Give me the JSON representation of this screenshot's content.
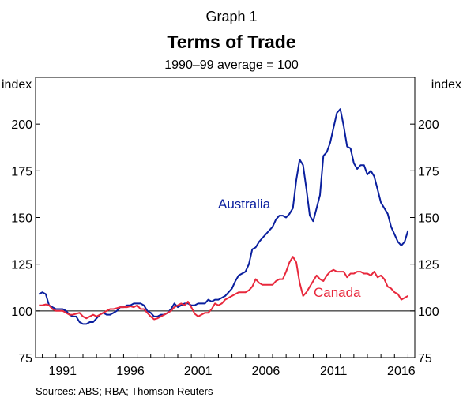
{
  "header": {
    "graph_number": "Graph 1",
    "title": "Terms of Trade",
    "subtitle": "1990–99 average = 100"
  },
  "sources": "Sources:   ABS; RBA; Thomson Reuters",
  "chart_data": {
    "type": "line",
    "ylabel_left": "index",
    "ylabel_right": "index",
    "ylim": [
      75,
      225
    ],
    "y_ticks": [
      75,
      100,
      125,
      150,
      175,
      200
    ],
    "xlim": [
      1989.5,
      2017.5
    ],
    "x_ticks": [
      1991,
      1996,
      2001,
      2006,
      2011,
      2016
    ],
    "x_tick_labels": [
      "1991",
      "1996",
      "2001",
      "2006",
      "2011",
      "2016"
    ],
    "reference_line": 100,
    "grid": false,
    "legend": "inline labels",
    "series": [
      {
        "name": "Australia",
        "color": "#0a1f9e",
        "points": [
          [
            1989.75,
            109
          ],
          [
            1990.0,
            110
          ],
          [
            1990.25,
            109
          ],
          [
            1990.5,
            103
          ],
          [
            1990.75,
            102
          ],
          [
            1991.0,
            101
          ],
          [
            1991.25,
            101
          ],
          [
            1991.5,
            101
          ],
          [
            1991.75,
            100
          ],
          [
            1992.0,
            98
          ],
          [
            1992.25,
            97
          ],
          [
            1992.5,
            97
          ],
          [
            1992.75,
            94
          ],
          [
            1993.0,
            93
          ],
          [
            1993.25,
            93
          ],
          [
            1993.5,
            94
          ],
          [
            1993.75,
            94
          ],
          [
            1994.0,
            96
          ],
          [
            1994.25,
            98
          ],
          [
            1994.5,
            99
          ],
          [
            1994.75,
            98
          ],
          [
            1995.0,
            98
          ],
          [
            1995.25,
            99
          ],
          [
            1995.5,
            100
          ],
          [
            1995.75,
            102
          ],
          [
            1996.0,
            102
          ],
          [
            1996.25,
            103
          ],
          [
            1996.5,
            103
          ],
          [
            1996.75,
            104
          ],
          [
            1997.0,
            104
          ],
          [
            1997.25,
            104
          ],
          [
            1997.5,
            103
          ],
          [
            1997.75,
            100
          ],
          [
            1998.0,
            99
          ],
          [
            1998.25,
            97
          ],
          [
            1998.5,
            97
          ],
          [
            1998.75,
            98
          ],
          [
            1999.0,
            98
          ],
          [
            1999.25,
            99
          ],
          [
            1999.5,
            101
          ],
          [
            1999.75,
            104
          ],
          [
            2000.0,
            102
          ],
          [
            2000.25,
            103
          ],
          [
            2000.5,
            104
          ],
          [
            2000.75,
            104
          ],
          [
            2001.0,
            103
          ],
          [
            2001.25,
            103
          ],
          [
            2001.5,
            104
          ],
          [
            2001.75,
            104
          ],
          [
            2002.0,
            104
          ],
          [
            2002.25,
            106
          ],
          [
            2002.5,
            105
          ],
          [
            2002.75,
            106
          ],
          [
            2003.0,
            106
          ],
          [
            2003.25,
            107
          ],
          [
            2003.5,
            108
          ],
          [
            2003.75,
            110
          ],
          [
            2004.0,
            112
          ],
          [
            2004.25,
            116
          ],
          [
            2004.5,
            119
          ],
          [
            2004.75,
            120
          ],
          [
            2005.0,
            121
          ],
          [
            2005.25,
            125
          ],
          [
            2005.5,
            133
          ],
          [
            2005.75,
            134
          ],
          [
            2006.0,
            137
          ],
          [
            2006.25,
            139
          ],
          [
            2006.5,
            141
          ],
          [
            2006.75,
            143
          ],
          [
            2007.0,
            145
          ],
          [
            2007.25,
            149
          ],
          [
            2007.5,
            151
          ],
          [
            2007.75,
            151
          ],
          [
            2008.0,
            150
          ],
          [
            2008.25,
            152
          ],
          [
            2008.5,
            155
          ],
          [
            2008.75,
            170
          ],
          [
            2009.0,
            181
          ],
          [
            2009.25,
            178
          ],
          [
            2009.5,
            165
          ],
          [
            2009.75,
            151
          ],
          [
            2010.0,
            148
          ],
          [
            2010.25,
            155
          ],
          [
            2010.5,
            162
          ],
          [
            2010.75,
            183
          ],
          [
            2011.0,
            185
          ],
          [
            2011.25,
            190
          ],
          [
            2011.5,
            198
          ],
          [
            2011.75,
            206
          ],
          [
            2012.0,
            208
          ],
          [
            2012.25,
            199
          ],
          [
            2012.5,
            188
          ],
          [
            2012.75,
            187
          ],
          [
            2013.0,
            179
          ],
          [
            2013.25,
            176
          ],
          [
            2013.5,
            178
          ],
          [
            2013.75,
            178
          ],
          [
            2014.0,
            173
          ],
          [
            2014.25,
            175
          ],
          [
            2014.5,
            172
          ],
          [
            2014.75,
            165
          ],
          [
            2015.0,
            158
          ],
          [
            2015.25,
            155
          ],
          [
            2015.5,
            152
          ],
          [
            2015.75,
            145
          ],
          [
            2016.0,
            141
          ],
          [
            2016.25,
            137
          ],
          [
            2016.5,
            135
          ],
          [
            2016.75,
            137
          ],
          [
            2017.0,
            143
          ]
        ]
      },
      {
        "name": "Canada",
        "color": "#e8283c",
        "points": [
          [
            1989.75,
            103
          ],
          [
            1990.0,
            103
          ],
          [
            1990.25,
            103.5
          ],
          [
            1990.5,
            103
          ],
          [
            1990.75,
            101
          ],
          [
            1991.0,
            100
          ],
          [
            1991.25,
            100
          ],
          [
            1991.5,
            100
          ],
          [
            1991.75,
            99
          ],
          [
            1992.0,
            98
          ],
          [
            1992.25,
            98
          ],
          [
            1992.5,
            98.5
          ],
          [
            1992.75,
            99
          ],
          [
            1993.0,
            97
          ],
          [
            1993.25,
            96
          ],
          [
            1993.5,
            97
          ],
          [
            1993.75,
            98
          ],
          [
            1994.0,
            97
          ],
          [
            1994.25,
            98
          ],
          [
            1994.5,
            99
          ],
          [
            1994.75,
            100
          ],
          [
            1995.0,
            101
          ],
          [
            1995.25,
            101
          ],
          [
            1995.5,
            101.5
          ],
          [
            1995.75,
            102
          ],
          [
            1996.0,
            102
          ],
          [
            1996.25,
            102
          ],
          [
            1996.5,
            102.5
          ],
          [
            1996.75,
            102
          ],
          [
            1997.0,
            103
          ],
          [
            1997.25,
            101
          ],
          [
            1997.5,
            101
          ],
          [
            1997.75,
            99
          ],
          [
            1998.0,
            97
          ],
          [
            1998.25,
            95.5
          ],
          [
            1998.5,
            96
          ],
          [
            1998.75,
            97
          ],
          [
            1999.0,
            98
          ],
          [
            1999.25,
            99
          ],
          [
            1999.5,
            100
          ],
          [
            1999.75,
            102
          ],
          [
            2000.0,
            103
          ],
          [
            2000.25,
            104
          ],
          [
            2000.5,
            103
          ],
          [
            2000.75,
            105
          ],
          [
            2001.0,
            102
          ],
          [
            2001.25,
            98.5
          ],
          [
            2001.5,
            97
          ],
          [
            2001.75,
            98
          ],
          [
            2002.0,
            99
          ],
          [
            2002.25,
            99
          ],
          [
            2002.5,
            101
          ],
          [
            2002.75,
            104
          ],
          [
            2003.0,
            103
          ],
          [
            2003.25,
            104
          ],
          [
            2003.5,
            106
          ],
          [
            2003.75,
            107
          ],
          [
            2004.0,
            108
          ],
          [
            2004.25,
            109
          ],
          [
            2004.5,
            110
          ],
          [
            2004.75,
            110
          ],
          [
            2005.0,
            110
          ],
          [
            2005.25,
            111
          ],
          [
            2005.5,
            113
          ],
          [
            2005.75,
            117
          ],
          [
            2006.0,
            115
          ],
          [
            2006.25,
            114
          ],
          [
            2006.5,
            114
          ],
          [
            2006.75,
            114
          ],
          [
            2007.0,
            114
          ],
          [
            2007.25,
            116
          ],
          [
            2007.5,
            117
          ],
          [
            2007.75,
            117
          ],
          [
            2008.0,
            121
          ],
          [
            2008.25,
            126
          ],
          [
            2008.5,
            129
          ],
          [
            2008.75,
            126
          ],
          [
            2009.0,
            115
          ],
          [
            2009.25,
            108
          ],
          [
            2009.5,
            110
          ],
          [
            2009.75,
            113
          ],
          [
            2010.0,
            116
          ],
          [
            2010.25,
            119
          ],
          [
            2010.5,
            117
          ],
          [
            2010.75,
            116
          ],
          [
            2011.0,
            119
          ],
          [
            2011.25,
            121
          ],
          [
            2011.5,
            122
          ],
          [
            2011.75,
            121
          ],
          [
            2012.0,
            121
          ],
          [
            2012.25,
            121
          ],
          [
            2012.5,
            118
          ],
          [
            2012.75,
            120
          ],
          [
            2013.0,
            120
          ],
          [
            2013.25,
            121
          ],
          [
            2013.5,
            121
          ],
          [
            2013.75,
            120
          ],
          [
            2014.0,
            120
          ],
          [
            2014.25,
            119
          ],
          [
            2014.5,
            121
          ],
          [
            2014.75,
            118
          ],
          [
            2015.0,
            119
          ],
          [
            2015.25,
            117
          ],
          [
            2015.5,
            113
          ],
          [
            2015.75,
            112
          ],
          [
            2016.0,
            110
          ],
          [
            2016.25,
            109
          ],
          [
            2016.5,
            106
          ],
          [
            2016.75,
            107
          ],
          [
            2017.0,
            108
          ]
        ]
      }
    ]
  }
}
